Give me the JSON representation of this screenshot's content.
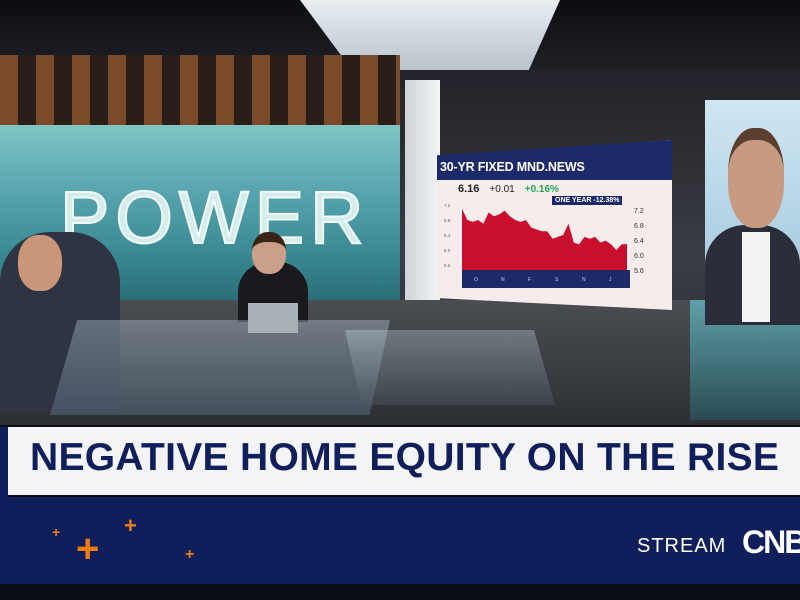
{
  "studio": {
    "wall_text": "POWER"
  },
  "screen": {
    "title": "30-YR FIXED MND.NEWS",
    "price": "6.16",
    "change": "+0.01",
    "change_pct": "+0.16%",
    "one_year": "ONE YEAR -12.38%",
    "chart_data": {
      "type": "area",
      "ylim": [
        5.6,
        7.2
      ],
      "y_ticks": [
        "7.2",
        "6.8",
        "6.4",
        "6.0",
        "5.6"
      ],
      "x_ticks": [
        "O",
        "N",
        "F",
        "S",
        "N",
        "J"
      ],
      "values": [
        7.1,
        6.8,
        6.75,
        6.8,
        6.7,
        7.0,
        6.9,
        6.95,
        7.05,
        6.9,
        6.8,
        6.75,
        6.8,
        6.6,
        6.55,
        6.5,
        6.5,
        6.3,
        6.35,
        6.4,
        6.7,
        6.2,
        6.15,
        6.35,
        6.3,
        6.35,
        6.2,
        6.25,
        6.15,
        6.0,
        6.15,
        6.16
      ],
      "colors": {
        "fill": "#c8102e",
        "axis_band": "#1d2a6a"
      }
    }
  },
  "lower_third": {
    "headline": "NEGATIVE HOME EQUITY ON THE RISE",
    "stream_label": "STREAM",
    "logo": "CNBC",
    "colors": {
      "navy": "#0f1f5c",
      "accent": "#f07d13"
    }
  }
}
